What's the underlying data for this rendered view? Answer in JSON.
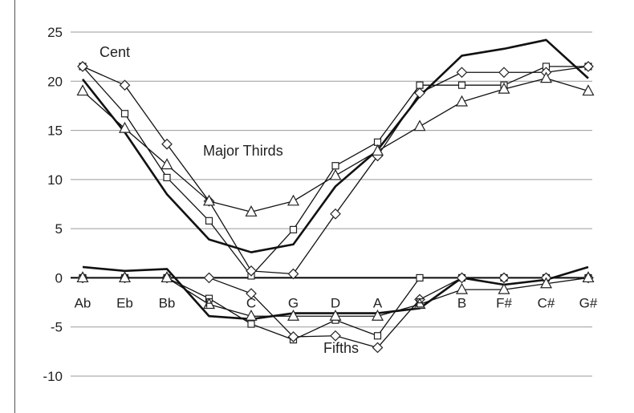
{
  "chart_data": {
    "type": "line",
    "title": "",
    "ylabel": "",
    "xlabel": "",
    "ylim": [
      -10,
      25
    ],
    "yticks": [
      -10,
      -5,
      0,
      5,
      10,
      15,
      20,
      25
    ],
    "grid": true,
    "categories": [
      "Ab",
      "Eb",
      "Bb",
      "F",
      "C",
      "G",
      "D",
      "A",
      "E",
      "B",
      "F#",
      "C#",
      "G#"
    ],
    "annotations": {
      "unit": "Cent",
      "thirds": "Major Thirds",
      "fifths": "Fifths"
    },
    "series": [
      {
        "marker": "none",
        "group": "thirds",
        "values": [
          20.2,
          14.8,
          8.5,
          3.9,
          2.6,
          3.4,
          9.3,
          13.0,
          18.5,
          22.6,
          23.3,
          24.2,
          20.3
        ]
      },
      {
        "marker": "square",
        "group": "thirds",
        "values": [
          21.5,
          16.7,
          10.2,
          5.8,
          0.2,
          4.9,
          11.4,
          13.8,
          19.6,
          19.6,
          19.6,
          21.5,
          21.5
        ]
      },
      {
        "marker": "diamond",
        "group": "thirds",
        "values": [
          21.5,
          19.6,
          13.6,
          7.8,
          0.7,
          0.4,
          6.5,
          12.4,
          18.8,
          20.9,
          20.9,
          20.9,
          21.5
        ]
      },
      {
        "marker": "triangle",
        "group": "thirds",
        "values": [
          19.0,
          15.2,
          11.5,
          7.8,
          6.7,
          7.8,
          10.4,
          12.9,
          15.4,
          17.9,
          19.2,
          20.3,
          19.0
        ]
      },
      {
        "marker": "none",
        "group": "fifths",
        "values": [
          1.1,
          0.7,
          0.9,
          -3.9,
          -4.2,
          -3.6,
          -3.6,
          -3.6,
          -3.1,
          0.0,
          -0.7,
          -0.2,
          1.1
        ]
      },
      {
        "marker": "square",
        "group": "fifths",
        "values": [
          0.0,
          0.0,
          0.0,
          -2.1,
          -4.7,
          -6.3,
          -4.3,
          -5.9,
          0.0,
          0.0,
          0.0,
          0.0,
          0.0
        ]
      },
      {
        "marker": "diamond",
        "group": "fifths",
        "values": [
          0.0,
          0.0,
          0.0,
          0.0,
          -1.6,
          -6.0,
          -5.9,
          -7.1,
          -2.2,
          0.0,
          0.0,
          0.0,
          0.0
        ]
      },
      {
        "marker": "triangle",
        "group": "fifths",
        "values": [
          0.0,
          0.0,
          0.0,
          -2.7,
          -3.9,
          -3.9,
          -3.9,
          -3.9,
          -2.7,
          -1.2,
          -1.2,
          -0.6,
          0.0
        ]
      }
    ]
  }
}
